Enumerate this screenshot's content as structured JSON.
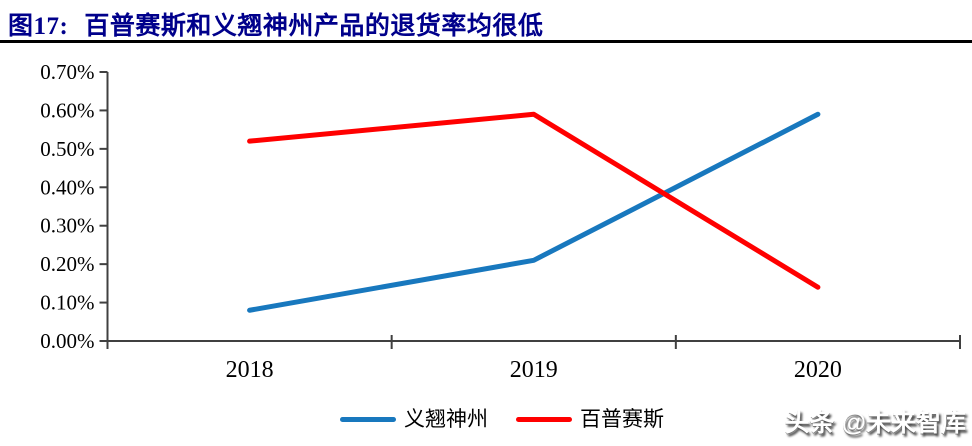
{
  "header": {
    "figure_label": "图17:",
    "title": "百普赛斯和义翘神州产品的退货率均很低"
  },
  "chart_data": {
    "type": "line",
    "title": "百普赛斯和义翘神州产品的退货率均很低",
    "categories": [
      "2018",
      "2019",
      "2020"
    ],
    "series": [
      {
        "name": "义翘神州",
        "color": "#1878BE",
        "values_pct": [
          0.08,
          0.21,
          0.59
        ]
      },
      {
        "name": "百普赛斯",
        "color": "#FF0000",
        "values_pct": [
          0.52,
          0.59,
          0.14
        ]
      }
    ],
    "ylim_pct": [
      0.0,
      0.7
    ],
    "ytick_step_pct": 0.1,
    "ytick_labels": [
      "0.00%",
      "0.10%",
      "0.20%",
      "0.30%",
      "0.40%",
      "0.50%",
      "0.60%",
      "0.70%"
    ],
    "grid": false,
    "legend_position": "bottom",
    "axis_color": "#404040"
  },
  "watermark": {
    "text": "头条 @未来智库"
  }
}
